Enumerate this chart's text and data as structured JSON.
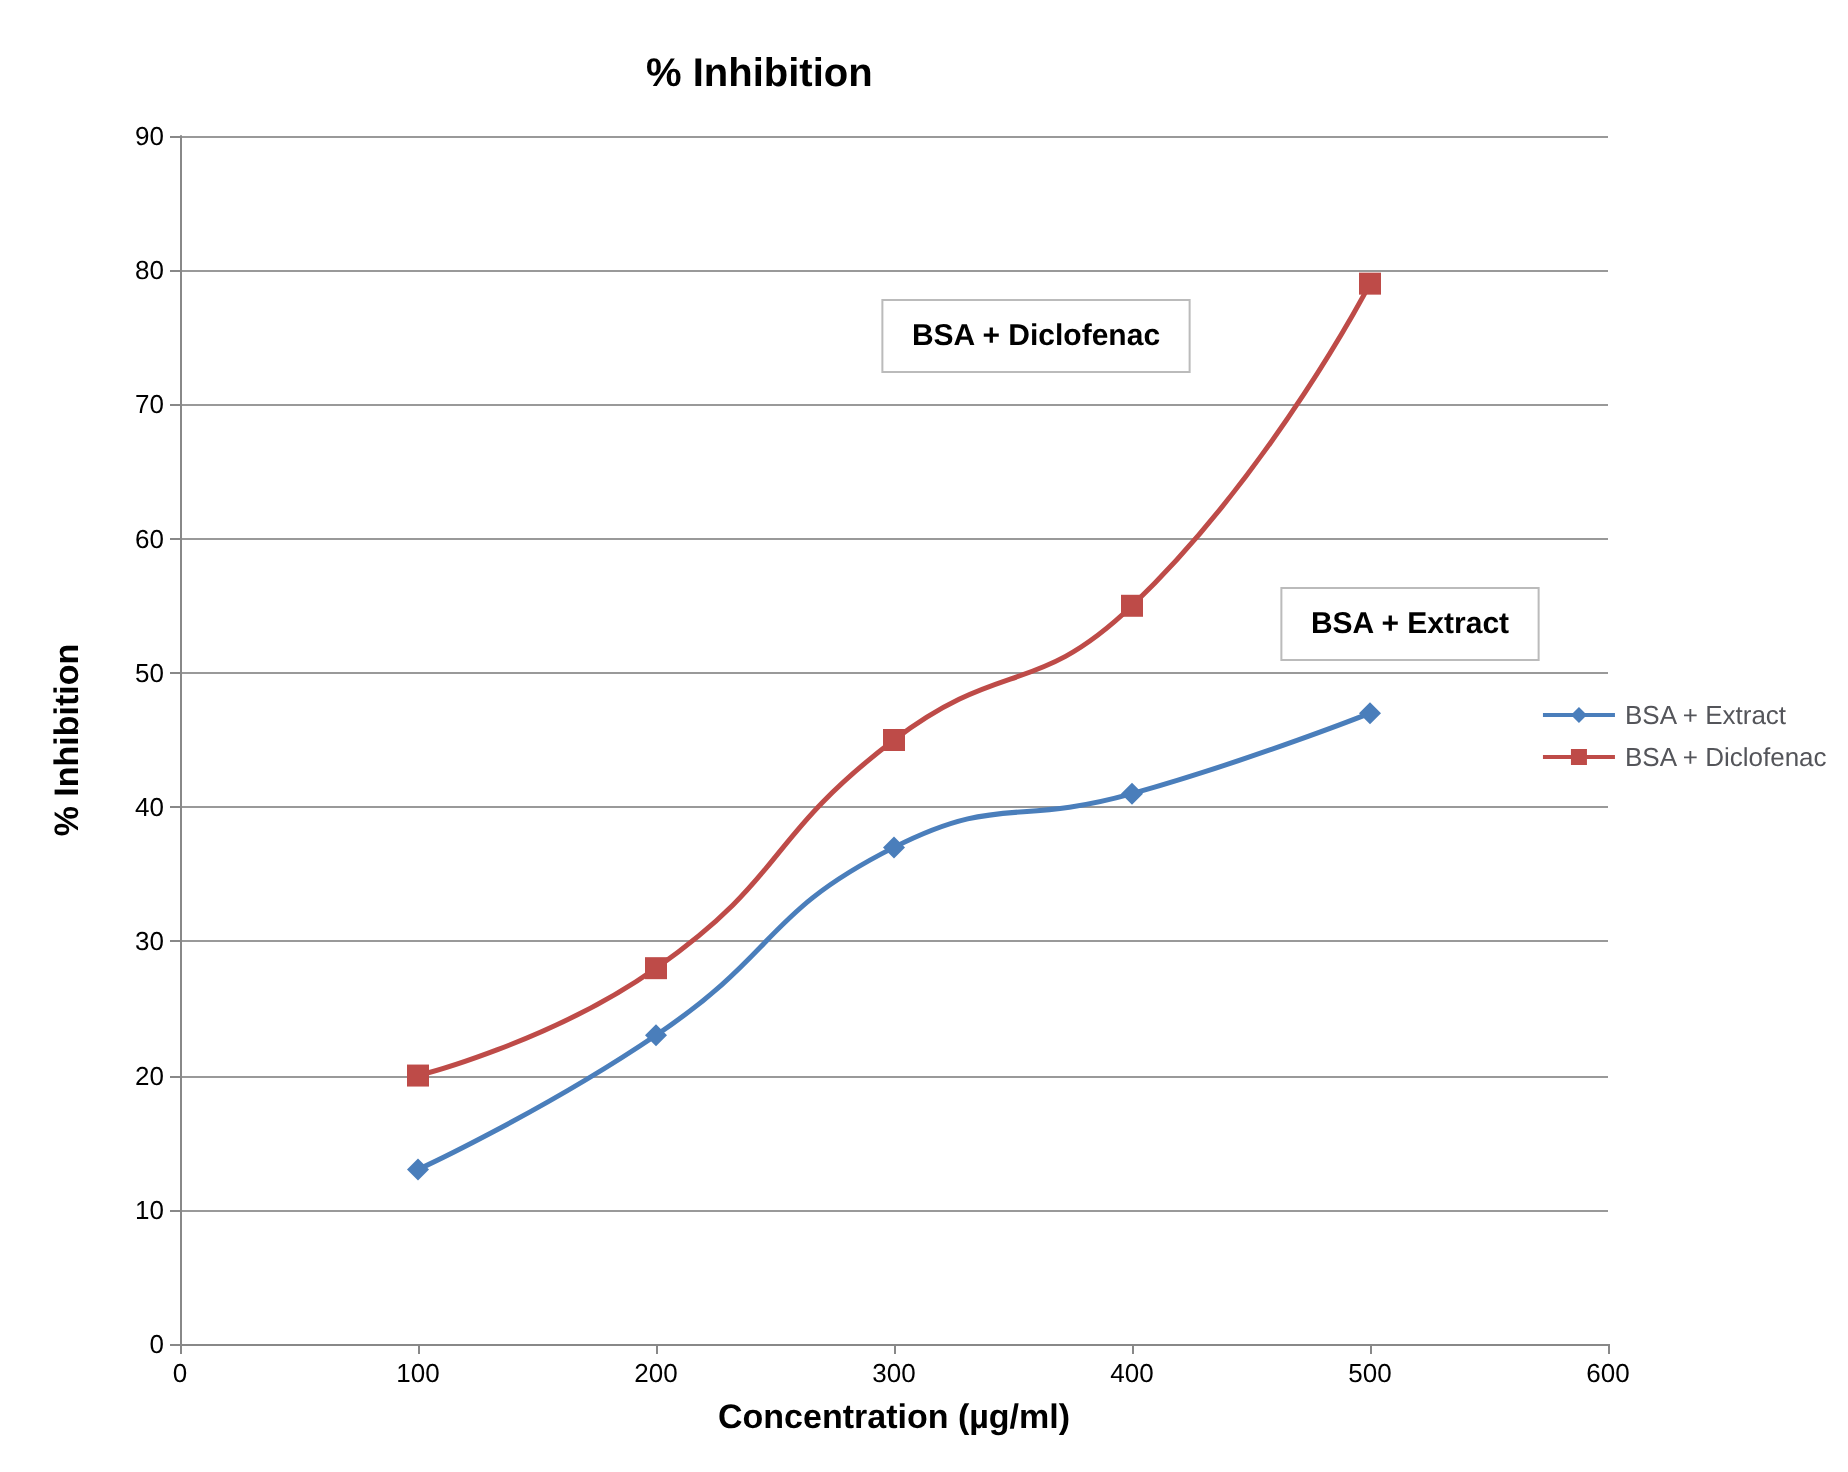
{
  "chart_data": {
    "type": "line",
    "title": "% Inhibition",
    "xlabel": "Concentration (µg/ml)",
    "ylabel": "% Inhibition",
    "x": [
      100,
      200,
      300,
      400,
      500
    ],
    "series": [
      {
        "name": "BSA + Extract",
        "color": "#4a7ebb",
        "values": [
          13,
          23,
          37,
          41,
          47
        ],
        "marker": "diamond"
      },
      {
        "name": "BSA + Diclofenac",
        "color": "#be4b48",
        "values": [
          20,
          28,
          45,
          55,
          79
        ],
        "marker": "square"
      }
    ],
    "xlim": [
      0,
      600
    ],
    "xticks": [
      0,
      100,
      200,
      300,
      400,
      500,
      600
    ],
    "ylim": [
      0,
      90
    ],
    "yticks": [
      0,
      10,
      20,
      30,
      40,
      50,
      60,
      70,
      80,
      90
    ],
    "grid": "y",
    "legend": "right",
    "line_style": "solid",
    "annotations": [
      "BSA + Diclofenac",
      "BSA + Extract"
    ]
  }
}
